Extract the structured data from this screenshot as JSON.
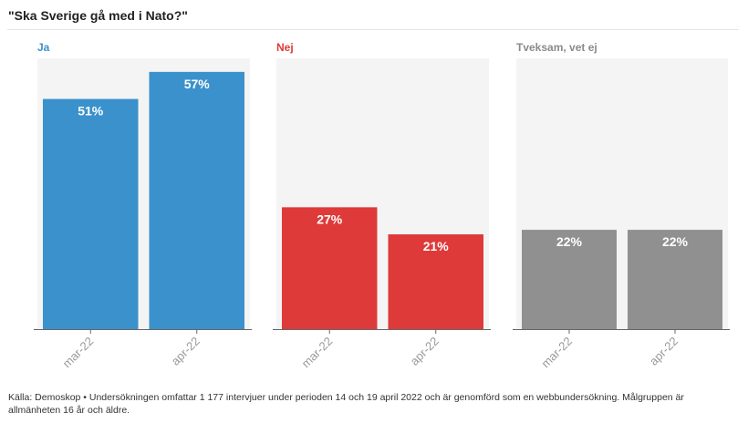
{
  "chart_data": {
    "type": "bar",
    "title": "\"Ska Sverige gå med i Nato?\"",
    "xlabel": "",
    "ylabel": "",
    "ylim": [
      0,
      60
    ],
    "grid": false,
    "categories": [
      "mar-22",
      "apr-22"
    ],
    "series": [
      {
        "name": "Ja",
        "color": "#3a91cc",
        "values": [
          51,
          57
        ],
        "labels": [
          "51%",
          "57%"
        ]
      },
      {
        "name": "Nej",
        "color": "#de3a39",
        "values": [
          27,
          21
        ],
        "labels": [
          "27%",
          "21%"
        ]
      },
      {
        "name": "Tveksam, vet ej",
        "color": "#909090",
        "label_color": "#8a8a8a",
        "values": [
          22,
          22
        ],
        "labels": [
          "22%",
          "22%"
        ]
      }
    ]
  },
  "footer": "Källa: Demoskop • Undersökningen omfattar 1 177 intervjuer under perioden 14 och 19 april 2022 och är genomförd som en webbundersökning. Målgruppen är allmänheten 16 år och äldre."
}
